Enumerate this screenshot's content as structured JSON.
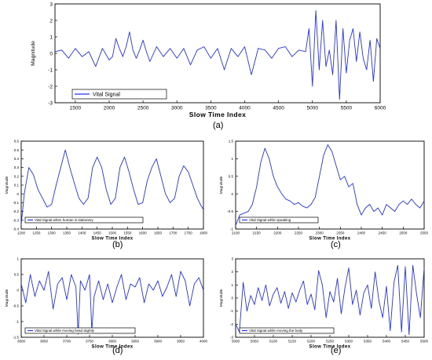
{
  "chart_data": [
    {
      "id": "a",
      "type": "line",
      "caption": "(a)",
      "xlabel": "Slow Time Index",
      "ylabel": "Magnitude",
      "xlim": [
        1200,
        6000
      ],
      "ylim": [
        -3,
        3
      ],
      "xticks": [
        1500,
        2000,
        2500,
        3000,
        3500,
        4000,
        4500,
        5000,
        5500,
        6000
      ],
      "yticks": [
        -3,
        -2,
        -1,
        0,
        1,
        2,
        3
      ],
      "grid": false,
      "legend_position": "bottom-left",
      "series": [
        {
          "name": "Vital Signal",
          "color": "#2233ee",
          "x": [
            1200,
            1300,
            1400,
            1500,
            1600,
            1700,
            1800,
            1900,
            2000,
            2050,
            2100,
            2150,
            2200,
            2250,
            2300,
            2350,
            2400,
            2450,
            2500,
            2550,
            2600,
            2700,
            2800,
            2900,
            3000,
            3100,
            3200,
            3300,
            3400,
            3500,
            3600,
            3700,
            3800,
            3900,
            4000,
            4100,
            4200,
            4300,
            4400,
            4500,
            4600,
            4700,
            4800,
            4900,
            4950,
            5000,
            5050,
            5100,
            5150,
            5200,
            5250,
            5300,
            5350,
            5400,
            5450,
            5500,
            5550,
            5600,
            5650,
            5700,
            5750,
            5800,
            5850,
            5900,
            5950,
            6000
          ],
          "y": [
            0.1,
            0.2,
            -0.3,
            0.3,
            -0.2,
            0.1,
            -0.8,
            0.3,
            -0.4,
            -0.2,
            0.9,
            0.3,
            -0.2,
            0.4,
            1.3,
            0.2,
            -0.3,
            0.2,
            0.8,
            0.1,
            -0.5,
            0.4,
            -0.2,
            0.3,
            -0.3,
            0.3,
            -0.7,
            0.2,
            0.4,
            -0.3,
            0.3,
            -1.0,
            0.3,
            -0.2,
            0.4,
            -1.3,
            0.3,
            0.2,
            -0.3,
            0.3,
            0.4,
            -0.2,
            0.2,
            0.1,
            1.5,
            -2.0,
            2.6,
            -1.0,
            2.0,
            -0.8,
            0.2,
            -1.3,
            2.0,
            -2.8,
            1.5,
            -1.2,
            0.8,
            1.5,
            -0.5,
            1.3,
            -0.3,
            -1.0,
            0.8,
            -1.7,
            0.9,
            0.3
          ]
        }
      ]
    },
    {
      "id": "b",
      "type": "line",
      "caption": "(b)",
      "xlabel": "Slow Time Index",
      "ylabel": "Magnitude",
      "xlim": [
        1200,
        1800
      ],
      "ylim": [
        -0.4,
        0.6
      ],
      "xticks": [
        1200,
        1250,
        1300,
        1350,
        1400,
        1450,
        1500,
        1550,
        1600,
        1650,
        1700,
        1750,
        1800
      ],
      "yticks": [
        -0.4,
        -0.3,
        -0.2,
        -0.1,
        0,
        0.1,
        0.2,
        0.3,
        0.4,
        0.5,
        0.6
      ],
      "grid": false,
      "legend_position": "bottom-left",
      "series": [
        {
          "name": "Vital Signal when human is stationery",
          "color": "#2233ee",
          "x": [
            1200,
            1210,
            1225,
            1240,
            1255,
            1270,
            1285,
            1300,
            1315,
            1330,
            1345,
            1360,
            1375,
            1390,
            1405,
            1420,
            1435,
            1450,
            1465,
            1480,
            1495,
            1510,
            1525,
            1540,
            1555,
            1570,
            1585,
            1600,
            1615,
            1630,
            1645,
            1660,
            1675,
            1690,
            1705,
            1720,
            1735,
            1750,
            1765,
            1780,
            1790,
            1800
          ],
          "y": [
            -0.35,
            0.0,
            0.3,
            0.22,
            0.05,
            -0.05,
            -0.15,
            -0.12,
            0.1,
            0.3,
            0.5,
            0.3,
            0.12,
            -0.05,
            -0.12,
            -0.05,
            0.3,
            0.42,
            0.3,
            0.05,
            -0.12,
            -0.05,
            0.3,
            0.42,
            0.25,
            0.05,
            -0.12,
            -0.1,
            0.15,
            0.3,
            0.4,
            0.2,
            0.0,
            -0.1,
            -0.05,
            0.2,
            0.32,
            0.25,
            0.1,
            -0.05,
            -0.12,
            -0.18
          ]
        }
      ]
    },
    {
      "id": "c",
      "type": "line",
      "caption": "(c)",
      "xlabel": "Slow Time Index",
      "ylabel": "Magnitude",
      "xlim": [
        2100,
        2550
      ],
      "ylim": [
        -1,
        1.5
      ],
      "xticks": [
        2100,
        2150,
        2200,
        2250,
        2300,
        2350,
        2400,
        2450,
        2500,
        2550
      ],
      "yticks": [
        -1,
        -0.5,
        0,
        0.5,
        1,
        1.5
      ],
      "grid": false,
      "legend_position": "bottom-left",
      "series": [
        {
          "name": "Vital Signal while speaking",
          "color": "#2233ee",
          "x": [
            2100,
            2110,
            2120,
            2130,
            2140,
            2150,
            2160,
            2170,
            2180,
            2190,
            2200,
            2210,
            2220,
            2230,
            2240,
            2250,
            2260,
            2270,
            2280,
            2290,
            2300,
            2310,
            2320,
            2330,
            2340,
            2350,
            2360,
            2370,
            2380,
            2390,
            2400,
            2410,
            2420,
            2430,
            2440,
            2450,
            2460,
            2470,
            2480,
            2490,
            2500,
            2510,
            2520,
            2530,
            2540,
            2550
          ],
          "y": [
            -0.9,
            -0.6,
            -0.55,
            -0.5,
            -0.3,
            0.2,
            0.9,
            1.3,
            1.0,
            0.5,
            0.2,
            0.0,
            -0.15,
            -0.2,
            -0.3,
            -0.25,
            -0.35,
            -0.4,
            -0.3,
            -0.1,
            0.5,
            1.1,
            1.4,
            1.2,
            0.8,
            0.4,
            0.5,
            0.2,
            0.3,
            -0.3,
            -0.6,
            -0.4,
            -0.3,
            -0.5,
            -0.4,
            -0.6,
            -0.3,
            -0.4,
            -0.5,
            -0.3,
            -0.2,
            -0.3,
            -0.15,
            -0.3,
            -0.4,
            -0.2
          ]
        }
      ]
    },
    {
      "id": "d",
      "type": "line",
      "caption": "(d)",
      "xlabel": "Slow Time Index",
      "ylabel": "Magnitude",
      "xlim": [
        3600,
        4000
      ],
      "ylim": [
        -1.5,
        1
      ],
      "xticks": [
        3600,
        3650,
        3700,
        3750,
        3800,
        3850,
        3900,
        3950,
        4000
      ],
      "yticks": [
        -1.5,
        -1,
        -0.5,
        0,
        0.5,
        1
      ],
      "grid": false,
      "legend_position": "bottom-left",
      "series": [
        {
          "name": "Vital Signal while moving head slightly",
          "color": "#2233ee",
          "x": [
            3600,
            3610,
            3620,
            3630,
            3640,
            3650,
            3660,
            3670,
            3680,
            3690,
            3700,
            3710,
            3720,
            3725,
            3730,
            3740,
            3750,
            3755,
            3760,
            3770,
            3780,
            3790,
            3800,
            3810,
            3820,
            3830,
            3840,
            3850,
            3860,
            3870,
            3880,
            3890,
            3900,
            3910,
            3920,
            3930,
            3940,
            3950,
            3960,
            3970,
            3980,
            3990,
            4000
          ],
          "y": [
            0.2,
            -0.4,
            0.5,
            -0.2,
            0.3,
            0.0,
            0.6,
            -0.6,
            0.2,
            0.4,
            -0.3,
            0.5,
            0.1,
            -1.4,
            0.3,
            0.0,
            0.5,
            -1.3,
            -0.2,
            0.3,
            -0.3,
            0.2,
            -0.4,
            0.1,
            0.5,
            -0.3,
            0.2,
            0.1,
            0.4,
            -0.4,
            0.2,
            0.0,
            0.3,
            -0.2,
            0.1,
            0.5,
            -0.2,
            0.6,
            0.3,
            -0.5,
            0.2,
            0.4,
            0.0
          ]
        }
      ]
    },
    {
      "id": "e",
      "type": "line",
      "caption": "(e)",
      "xlabel": "Slow Time Index",
      "ylabel": "Magnitude",
      "xlim": [
        5000,
        5500
      ],
      "ylim": [
        -3,
        3
      ],
      "xticks": [
        5000,
        5050,
        5100,
        5150,
        5200,
        5250,
        5300,
        5350,
        5400,
        5450,
        5500
      ],
      "yticks": [
        -3,
        -2,
        -1,
        0,
        1,
        2,
        3
      ],
      "grid": false,
      "legend_position": "bottom-left",
      "series": [
        {
          "name": "Vital Signal while moving the body",
          "color": "#2233ee",
          "x": [
            5000,
            5010,
            5020,
            5030,
            5040,
            5050,
            5060,
            5070,
            5080,
            5090,
            5100,
            5110,
            5120,
            5130,
            5140,
            5150,
            5160,
            5170,
            5180,
            5190,
            5200,
            5210,
            5220,
            5230,
            5240,
            5250,
            5260,
            5270,
            5280,
            5290,
            5300,
            5310,
            5320,
            5330,
            5340,
            5350,
            5360,
            5370,
            5380,
            5390,
            5400,
            5410,
            5420,
            5430,
            5440,
            5450,
            5460,
            5470,
            5480,
            5490,
            5500
          ],
          "y": [
            -2.0,
            -2.6,
            1.2,
            -1.0,
            0.2,
            -0.5,
            0.8,
            -0.2,
            1.0,
            -0.6,
            0.3,
            0.8,
            -0.4,
            0.5,
            -0.8,
            0.4,
            -0.3,
            0.6,
            1.3,
            -0.5,
            0.3,
            -0.9,
            2.1,
            1.0,
            -1.5,
            0.5,
            -0.3,
            1.5,
            -1.2,
            0.8,
            2.3,
            -0.5,
            0.6,
            -1.3,
            0.4,
            1.0,
            -0.8,
            2.0,
            -0.2,
            -1.5,
            0.9,
            -2.5,
            1.2,
            2.5,
            -2.6,
            2.4,
            -2.8,
            2.5,
            0.3,
            -1.5,
            2.3
          ]
        }
      ]
    }
  ]
}
